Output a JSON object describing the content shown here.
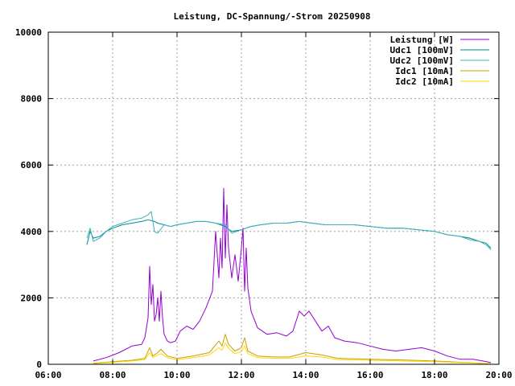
{
  "chart_data": {
    "type": "line",
    "title": "Leistung, DC-Spannung/-Strom 20250908",
    "xlabel": "",
    "ylabel": "",
    "x_unit": "hour_of_day",
    "xlim": [
      6,
      20
    ],
    "ylim": [
      0,
      10000
    ],
    "grid": true,
    "legend_position": "top-right",
    "x_ticks": [
      {
        "value": 6,
        "label": "06:00"
      },
      {
        "value": 8,
        "label": "08:00"
      },
      {
        "value": 10,
        "label": "10:00"
      },
      {
        "value": 12,
        "label": "12:00"
      },
      {
        "value": 14,
        "label": "14:00"
      },
      {
        "value": 16,
        "label": "16:00"
      },
      {
        "value": 18,
        "label": "18:00"
      },
      {
        "value": 20,
        "label": "20:00"
      }
    ],
    "y_ticks": [
      {
        "value": 0,
        "label": "0"
      },
      {
        "value": 2000,
        "label": "2000"
      },
      {
        "value": 4000,
        "label": "4000"
      },
      {
        "value": 6000,
        "label": "6000"
      },
      {
        "value": 8000,
        "label": "8000"
      },
      {
        "value": 10000,
        "label": "10000"
      }
    ],
    "series": [
      {
        "name": "Leistung [W]",
        "color": "#9400d3",
        "x": [
          7.4,
          7.8,
          8.2,
          8.6,
          8.9,
          9.0,
          9.1,
          9.15,
          9.2,
          9.25,
          9.3,
          9.35,
          9.4,
          9.45,
          9.5,
          9.55,
          9.6,
          9.7,
          9.8,
          9.95,
          10.1,
          10.3,
          10.5,
          10.7,
          10.9,
          11.1,
          11.2,
          11.3,
          11.35,
          11.4,
          11.45,
          11.5,
          11.55,
          11.6,
          11.7,
          11.8,
          11.9,
          12.0,
          12.05,
          12.1,
          12.15,
          12.2,
          12.3,
          12.5,
          12.8,
          13.1,
          13.4,
          13.6,
          13.8,
          13.95,
          14.1,
          14.3,
          14.5,
          14.7,
          14.9,
          15.2,
          15.6,
          16.0,
          16.4,
          16.8,
          17.2,
          17.6,
          18.0,
          18.4,
          18.8,
          19.2,
          19.5,
          19.75
        ],
        "y": [
          100,
          200,
          350,
          550,
          600,
          800,
          1400,
          2950,
          1800,
          2400,
          1300,
          1500,
          2000,
          1300,
          2200,
          1400,
          900,
          700,
          650,
          700,
          1000,
          1150,
          1050,
          1300,
          1700,
          2200,
          4000,
          2600,
          3800,
          2900,
          5300,
          3200,
          4800,
          3500,
          2600,
          3300,
          2500,
          3500,
          4100,
          2200,
          3500,
          2300,
          1600,
          1100,
          900,
          950,
          850,
          1000,
          1600,
          1450,
          1600,
          1300,
          1000,
          1150,
          800,
          700,
          650,
          550,
          450,
          400,
          450,
          500,
          400,
          250,
          150,
          150,
          100,
          50
        ]
      },
      {
        "name": "Udc1 [100mV]",
        "color": "#008b8b",
        "x": [
          7.2,
          7.3,
          7.4,
          7.6,
          7.8,
          8.0,
          8.3,
          8.6,
          8.9,
          9.1,
          9.3,
          9.4,
          9.6,
          9.8,
          10.0,
          10.3,
          10.6,
          10.9,
          11.2,
          11.5,
          11.7,
          12.0,
          12.3,
          12.6,
          13.0,
          13.4,
          13.8,
          14.2,
          14.6,
          15.0,
          15.5,
          16.0,
          16.5,
          17.0,
          17.5,
          18.0,
          18.4,
          18.8,
          19.1,
          19.4,
          19.6,
          19.75
        ],
        "y": [
          3600,
          4000,
          3800,
          3850,
          4000,
          4100,
          4200,
          4250,
          4300,
          4350,
          4300,
          4250,
          4200,
          4150,
          4200,
          4250,
          4300,
          4300,
          4250,
          4150,
          4000,
          4050,
          4150,
          4200,
          4250,
          4250,
          4300,
          4250,
          4200,
          4200,
          4200,
          4150,
          4100,
          4100,
          4050,
          4000,
          3900,
          3850,
          3800,
          3700,
          3650,
          3500
        ]
      },
      {
        "name": "Udc2 [100mV]",
        "color": "#40b0c0",
        "x": [
          7.2,
          7.3,
          7.4,
          7.6,
          7.8,
          8.0,
          8.3,
          8.6,
          8.9,
          9.1,
          9.2,
          9.3,
          9.4,
          9.6,
          9.8,
          10.0,
          10.3,
          10.6,
          10.9,
          11.2,
          11.5,
          11.7,
          12.0,
          12.3,
          12.6,
          13.0,
          13.4,
          13.8,
          14.2,
          14.6,
          15.0,
          15.5,
          16.0,
          16.5,
          17.0,
          17.5,
          18.0,
          18.4,
          18.8,
          19.1,
          19.4,
          19.6,
          19.75
        ],
        "y": [
          3800,
          4100,
          3700,
          3800,
          4000,
          4150,
          4250,
          4350,
          4400,
          4500,
          4600,
          4000,
          3950,
          4200,
          4150,
          4200,
          4250,
          4300,
          4300,
          4250,
          4200,
          3950,
          4050,
          4150,
          4200,
          4250,
          4250,
          4300,
          4250,
          4200,
          4200,
          4200,
          4150,
          4100,
          4100,
          4050,
          4000,
          3900,
          3850,
          3750,
          3700,
          3600,
          3450
        ]
      },
      {
        "name": "Idc1 [10mA]",
        "color": "#c8a000",
        "x": [
          7.4,
          8.0,
          8.6,
          9.0,
          9.15,
          9.25,
          9.4,
          9.5,
          9.7,
          10.0,
          10.5,
          11.0,
          11.3,
          11.4,
          11.5,
          11.6,
          11.8,
          12.0,
          12.1,
          12.2,
          12.5,
          13.0,
          13.5,
          14.0,
          14.5,
          15.0,
          16.0,
          17.0,
          18.0,
          19.0,
          19.75
        ],
        "y": [
          30,
          80,
          120,
          180,
          500,
          250,
          350,
          450,
          250,
          180,
          250,
          350,
          700,
          550,
          900,
          600,
          400,
          500,
          800,
          400,
          250,
          220,
          220,
          350,
          280,
          180,
          150,
          130,
          100,
          50,
          20
        ]
      },
      {
        "name": "Idc2 [10mA]",
        "color": "#ffd700",
        "x": [
          7.4,
          8.0,
          8.6,
          9.0,
          9.15,
          9.25,
          9.4,
          9.5,
          9.7,
          10.0,
          10.5,
          11.0,
          11.3,
          11.4,
          11.5,
          11.6,
          11.8,
          12.0,
          12.1,
          12.2,
          12.5,
          13.0,
          13.5,
          14.0,
          14.5,
          15.0,
          16.0,
          17.0,
          18.0,
          19.0,
          19.75
        ],
        "y": [
          20,
          60,
          100,
          140,
          350,
          200,
          280,
          320,
          200,
          140,
          200,
          280,
          500,
          420,
          650,
          480,
          320,
          380,
          550,
          320,
          200,
          180,
          180,
          250,
          220,
          140,
          120,
          100,
          80,
          40,
          15
        ]
      }
    ]
  }
}
